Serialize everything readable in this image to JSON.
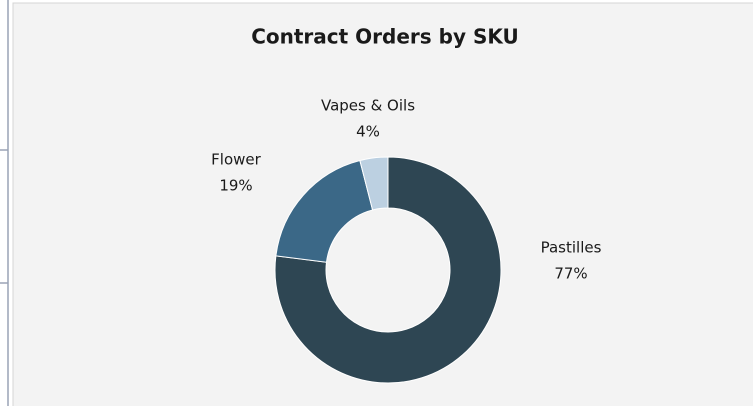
{
  "chart_data": {
    "type": "pie",
    "title": "Contract Orders by SKU",
    "categories": [
      "Pastilles",
      "Flower",
      "Vapes & Oils"
    ],
    "values": [
      77,
      19,
      4
    ],
    "value_labels": [
      "77%",
      "19%",
      "4%"
    ],
    "colors": [
      "#2e4653",
      "#3b6887",
      "#bcd0e1"
    ],
    "donut": true
  }
}
